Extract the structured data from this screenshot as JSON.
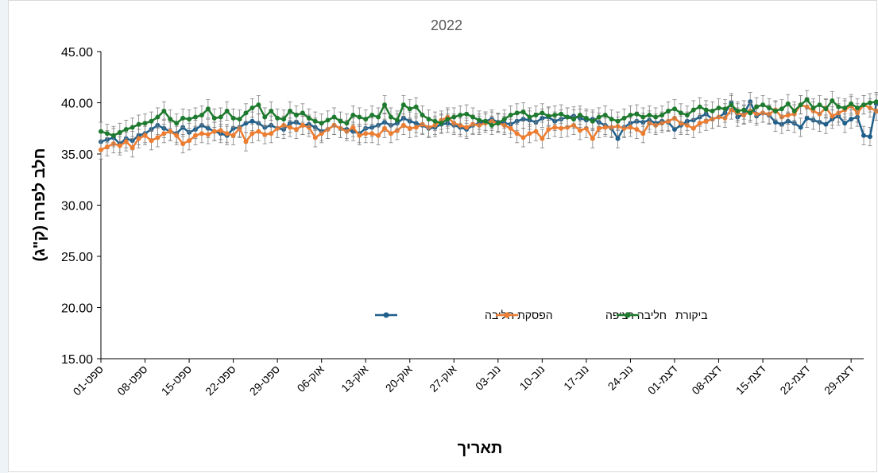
{
  "chart_data": {
    "type": "line",
    "title": "2022",
    "xlabel": "תאריך",
    "ylabel": "חלב לפרה (ק\"ג)",
    "ylim": [
      15,
      45
    ],
    "y_ticks": [
      "15.00",
      "20.00",
      "25.00",
      "30.00",
      "35.00",
      "40.00",
      "45.00"
    ],
    "x_tick_labels": [
      "01-ספט",
      "08-ספט",
      "15-ספט",
      "22-ספט",
      "29-ספט",
      "06-אוק",
      "13-אוק",
      "20-אוק",
      "27-אוק",
      "03-נוב",
      "10-נוב",
      "17-נוב",
      "24-נוב",
      "01-דצמ",
      "08-דצמ",
      "15-דצמ",
      "22-דצמ",
      "29-דצמ"
    ],
    "x_range_days": [
      0,
      121
    ],
    "grid": false,
    "legend_position": "center-right inside plot",
    "error_bars": true,
    "series": [
      {
        "name": "הפסקת חליבה",
        "color": "#1f5f8b",
        "values": [
          36.2,
          36.4,
          36.6,
          36.0,
          36.5,
          36.3,
          36.8,
          37.0,
          37.4,
          37.8,
          37.5,
          37.2,
          37.0,
          37.6,
          37.1,
          37.4,
          37.8,
          37.5,
          37.2,
          37.0,
          36.8,
          37.5,
          37.6,
          38.0,
          38.2,
          38.0,
          37.6,
          37.8,
          37.5,
          37.4,
          38.0,
          38.1,
          37.8,
          37.9,
          37.6,
          37.2,
          37.4,
          37.8,
          37.5,
          37.4,
          37.2,
          37.0,
          37.5,
          37.6,
          37.8,
          38.1,
          37.8,
          38.0,
          38.5,
          38.2,
          38.0,
          37.8,
          37.5,
          37.6,
          37.9,
          38.0,
          37.8,
          37.6,
          37.4,
          37.8,
          38.0,
          38.2,
          38.4,
          38.1,
          38.0,
          37.9,
          38.2,
          38.4,
          38.3,
          38.1,
          38.5,
          38.6,
          38.2,
          38.4,
          38.6,
          38.7,
          38.5,
          38.3,
          38.4,
          38.1,
          37.8,
          37.5,
          36.5,
          37.6,
          38.0,
          38.2,
          38.1,
          38.3,
          38.0,
          38.2,
          38.1,
          37.4,
          37.8,
          38.2,
          38.3,
          38.6,
          38.9,
          38.4,
          38.6,
          39.0,
          40.0,
          38.6,
          38.9,
          40.1,
          38.7,
          39.0,
          38.8,
          38.1,
          37.9,
          38.2,
          38.0,
          37.6,
          38.5,
          38.3,
          38.1,
          37.9,
          38.4,
          38.7,
          38.0,
          38.4,
          38.6,
          36.8,
          36.7,
          39.9
        ],
        "errors": [
          0.9,
          0.9,
          0.9,
          0.9,
          0.9,
          0.9,
          0.9,
          0.9,
          0.9,
          0.9,
          0.9,
          0.9,
          0.9,
          0.9,
          0.9,
          0.9,
          0.9,
          0.9,
          0.9,
          0.9,
          0.9,
          0.9,
          0.9,
          0.9,
          0.9,
          0.9,
          0.9,
          0.9,
          0.9,
          0.9,
          0.9,
          0.9,
          0.9,
          0.9,
          0.9,
          0.9,
          0.9,
          0.9,
          0.9,
          0.9,
          0.9,
          0.9,
          0.9,
          0.9,
          0.9,
          0.9,
          0.9,
          0.9,
          0.9,
          0.9,
          0.9,
          0.9,
          0.9,
          0.9,
          0.9,
          0.9,
          0.9,
          0.9,
          0.9,
          0.9,
          0.9,
          0.9,
          0.9,
          0.9,
          0.9,
          0.9,
          0.9,
          0.9,
          0.9,
          0.9,
          0.9,
          0.9,
          0.9,
          0.9,
          0.9,
          0.9,
          0.9,
          0.9,
          0.9,
          0.9,
          0.9,
          0.9,
          0.9,
          0.9,
          0.9,
          0.9,
          0.9,
          0.9,
          0.9,
          0.9,
          0.9,
          0.9,
          0.9,
          0.9,
          0.9,
          0.9,
          0.9,
          0.9,
          0.9,
          0.9,
          0.9,
          0.9,
          0.9,
          0.9,
          0.9,
          0.9,
          0.9,
          0.9,
          0.9,
          0.9,
          0.9,
          0.9,
          0.9,
          0.9,
          0.9,
          0.9,
          0.9,
          0.9,
          0.9,
          0.9,
          0.9,
          0.9,
          0.9,
          0.9
        ]
      },
      {
        "name": "חליבה רציפה",
        "color": "#ed7d31",
        "values": [
          35.4,
          35.7,
          36.0,
          35.8,
          36.2,
          35.6,
          36.5,
          36.8,
          36.3,
          36.6,
          37.0,
          37.2,
          36.8,
          36.0,
          36.3,
          36.8,
          37.0,
          36.9,
          37.2,
          37.3,
          37.0,
          36.8,
          37.5,
          36.2,
          37.0,
          37.2,
          36.9,
          37.0,
          37.5,
          37.8,
          37.6,
          37.4,
          37.8,
          37.6,
          36.6,
          37.0,
          37.4,
          37.8,
          37.5,
          37.2,
          37.6,
          36.8,
          37.0,
          37.0,
          36.8,
          37.5,
          37.0,
          37.3,
          37.8,
          37.5,
          37.6,
          37.9,
          37.6,
          37.8,
          38.3,
          38.6,
          38.0,
          37.8,
          37.6,
          37.9,
          37.8,
          38.0,
          38.2,
          38.0,
          37.8,
          37.5,
          37.0,
          36.6,
          37.0,
          37.2,
          36.5,
          37.4,
          37.6,
          37.5,
          37.6,
          37.8,
          37.3,
          37.5,
          36.5,
          37.5,
          37.6,
          37.6,
          37.7,
          37.5,
          37.6,
          37.4,
          37.0,
          38.0,
          37.8,
          38.0,
          38.2,
          38.5,
          38.0,
          37.8,
          37.5,
          38.0,
          38.2,
          38.4,
          38.6,
          38.5,
          39.3,
          39.0,
          38.8,
          39.2,
          38.9,
          39.0,
          38.9,
          39.3,
          38.6,
          38.8,
          38.9,
          39.8,
          39.6,
          39.2,
          38.9,
          39.5,
          38.7,
          39.0,
          39.3,
          39.7,
          39.0,
          39.8,
          39.5,
          39.2
        ],
        "errors": [
          0.9,
          0.9,
          0.9,
          0.9,
          0.9,
          0.9,
          0.9,
          0.9,
          0.9,
          0.9,
          0.9,
          0.9,
          0.9,
          0.9,
          0.9,
          0.9,
          0.9,
          0.9,
          0.9,
          0.9,
          0.9,
          0.9,
          0.9,
          0.9,
          0.9,
          0.9,
          0.9,
          0.9,
          0.9,
          0.9,
          0.9,
          0.9,
          0.9,
          0.9,
          0.9,
          0.9,
          0.9,
          0.9,
          0.9,
          0.9,
          0.9,
          0.9,
          0.9,
          0.9,
          0.9,
          0.9,
          0.9,
          0.9,
          0.9,
          0.9,
          0.9,
          0.9,
          0.9,
          0.9,
          0.9,
          0.9,
          0.9,
          0.9,
          0.9,
          0.9,
          0.9,
          0.9,
          0.9,
          0.9,
          0.9,
          0.9,
          0.9,
          0.9,
          0.9,
          0.9,
          0.9,
          0.9,
          0.9,
          0.9,
          0.9,
          0.9,
          0.9,
          0.9,
          0.9,
          0.9,
          0.9,
          0.9,
          0.9,
          0.9,
          0.9,
          0.9,
          0.9,
          0.9,
          0.9,
          0.9,
          0.9,
          0.9,
          0.9,
          0.9,
          0.9,
          0.9,
          0.9,
          0.9,
          0.9,
          0.9,
          0.9,
          0.9,
          0.9,
          0.9,
          0.9,
          0.9,
          0.9,
          0.9,
          0.9,
          0.9,
          0.9,
          0.9,
          0.9,
          0.9,
          0.9,
          0.9,
          0.9,
          0.9,
          0.9,
          0.9,
          0.9,
          0.9,
          0.9,
          0.9
        ]
      },
      {
        "name": "ביקורת",
        "color": "#1e7a2e",
        "values": [
          37.2,
          37.0,
          36.8,
          37.1,
          37.4,
          37.6,
          37.9,
          38.0,
          38.2,
          38.6,
          39.2,
          38.4,
          38.0,
          38.5,
          38.4,
          38.6,
          38.8,
          39.4,
          38.5,
          38.6,
          39.2,
          38.5,
          38.4,
          39.0,
          39.5,
          39.8,
          38.6,
          39.2,
          38.5,
          38.4,
          39.2,
          38.8,
          39.0,
          38.5,
          38.2,
          38.0,
          38.3,
          38.6,
          38.2,
          38.0,
          38.8,
          38.6,
          38.4,
          38.8,
          38.6,
          39.8,
          38.6,
          38.3,
          39.8,
          39.4,
          39.6,
          38.8,
          38.4,
          38.2,
          38.0,
          38.4,
          38.6,
          38.8,
          38.9,
          38.6,
          38.3,
          38.2,
          37.8,
          38.0,
          38.4,
          38.8,
          39.0,
          39.1,
          38.6,
          38.8,
          39.0,
          38.7,
          38.8,
          38.9,
          38.6,
          38.4,
          38.8,
          38.5,
          38.2,
          38.6,
          38.8,
          38.4,
          38.2,
          38.5,
          38.8,
          38.9,
          38.6,
          38.8,
          38.6,
          38.8,
          39.2,
          39.4,
          39.0,
          38.8,
          39.3,
          39.6,
          39.3,
          39.2,
          39.5,
          39.4,
          39.8,
          39.2,
          39.3,
          39.0,
          39.6,
          39.8,
          39.5,
          39.2,
          39.4,
          39.9,
          39.2,
          39.8,
          40.3,
          39.5,
          39.8,
          39.4,
          40.2,
          39.6,
          39.5,
          39.9,
          39.5,
          39.8,
          40.0,
          40.1
        ],
        "errors": [
          0.9,
          0.9,
          0.9,
          0.9,
          0.9,
          0.9,
          0.9,
          0.9,
          0.9,
          0.9,
          0.9,
          0.9,
          0.9,
          0.9,
          0.9,
          0.9,
          0.9,
          0.9,
          0.9,
          0.9,
          0.9,
          0.9,
          0.9,
          0.9,
          0.9,
          0.9,
          0.9,
          0.9,
          0.9,
          0.9,
          0.9,
          0.9,
          0.9,
          0.9,
          0.9,
          0.9,
          0.9,
          0.9,
          0.9,
          0.9,
          0.9,
          0.9,
          0.9,
          0.9,
          0.9,
          0.9,
          0.9,
          0.9,
          0.9,
          0.9,
          0.9,
          0.9,
          0.9,
          0.9,
          0.9,
          0.9,
          0.9,
          0.9,
          0.9,
          0.9,
          0.9,
          0.9,
          0.9,
          0.9,
          0.9,
          0.9,
          0.9,
          0.9,
          0.9,
          0.9,
          0.9,
          0.9,
          0.9,
          0.9,
          0.9,
          0.9,
          0.9,
          0.9,
          0.9,
          0.9,
          0.9,
          0.9,
          0.9,
          0.9,
          0.9,
          0.9,
          0.9,
          0.9,
          0.9,
          0.9,
          0.9,
          0.9,
          0.9,
          0.9,
          0.9,
          0.9,
          0.9,
          0.9,
          0.9,
          0.9,
          0.9,
          0.9,
          0.9,
          0.9,
          0.9,
          0.9,
          0.9,
          0.9,
          0.9,
          0.9,
          0.9,
          0.9,
          0.9,
          0.9,
          0.9,
          0.9,
          0.9,
          0.9,
          0.9,
          0.9,
          0.9,
          0.9,
          0.9,
          0.9
        ]
      }
    ]
  }
}
